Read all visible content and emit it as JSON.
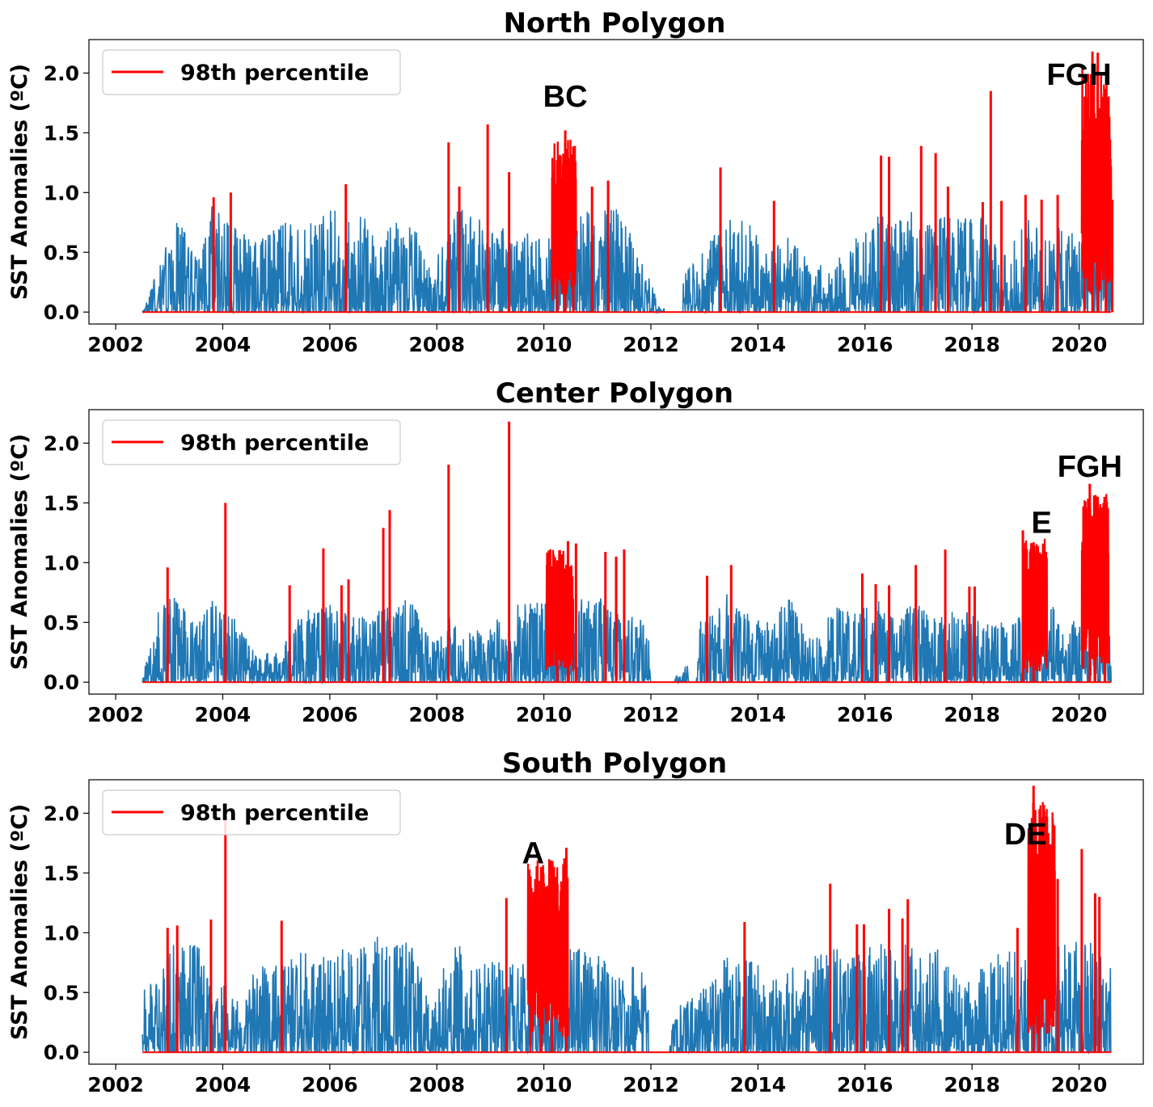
{
  "chart_data": [
    {
      "type": "line",
      "title": "North Polygon",
      "ylabel": "SST Anomalies (ºC)",
      "xlim": [
        2001.5,
        2021.2
      ],
      "ylim": [
        -0.1,
        2.28
      ],
      "xticks": [
        2002,
        2004,
        2006,
        2008,
        2010,
        2012,
        2014,
        2016,
        2018,
        2020
      ],
      "xtick_labels": [
        "2002",
        "2004",
        "2006",
        "2008",
        "2010",
        "2012",
        "2014",
        "2016",
        "2018",
        "2020"
      ],
      "yticks": [
        0.0,
        0.5,
        1.0,
        1.5,
        2.0
      ],
      "ytick_labels": [
        "0.0",
        "0.5",
        "1.0",
        "1.5",
        "2.0"
      ],
      "legend": {
        "position": "upper-left",
        "entries": [
          {
            "label": "98th percentile",
            "color": "#ff0000"
          }
        ]
      },
      "series": [
        {
          "name": "",
          "color": "#1f77b4",
          "description_values": "daily anomalies (envelope)",
          "x": [
            2002.5,
            2002.8,
            2003.1,
            2003.5,
            2003.8,
            2004.2,
            2004.6,
            2005.0,
            2005.5,
            2006.0,
            2006.5,
            2007.0,
            2007.5,
            2007.9,
            2008.3,
            2008.7,
            2009.1,
            2009.5,
            2010.0,
            2010.5,
            2011.0,
            2011.4,
            2011.8,
            2012.2,
            2012.6,
            2013.0,
            2013.4,
            2013.8,
            2014.2,
            2014.6,
            2015.0,
            2015.4,
            2015.8,
            2016.2,
            2016.6,
            2017.0,
            2017.4,
            2017.8,
            2018.2,
            2018.6,
            2019.0,
            2019.4,
            2019.8,
            2020.2,
            2020.6
          ],
          "y": [
            0.0,
            0.38,
            0.86,
            0.48,
            0.9,
            0.72,
            0.6,
            0.7,
            0.85,
            0.86,
            0.82,
            0.7,
            0.82,
            0.38,
            0.9,
            0.8,
            0.74,
            0.7,
            0.6,
            0.82,
            0.86,
            0.88,
            0.5,
            0.0,
            0.3,
            0.55,
            0.8,
            0.8,
            0.5,
            0.74,
            0.35,
            0.45,
            0.6,
            0.82,
            0.76,
            0.88,
            0.82,
            0.84,
            0.85,
            0.5,
            0.84,
            0.7,
            0.76,
            0.62,
            0.6
          ]
        },
        {
          "name": "98th percentile",
          "color": "#ff0000",
          "description_values": "exceedance spikes",
          "x": [
            2003.83,
            2004.15,
            2006.3,
            2008.22,
            2008.42,
            2008.95,
            2009.35,
            2010.25,
            2010.4,
            2010.55,
            2010.9,
            2011.2,
            2013.3,
            2014.3,
            2016.3,
            2016.45,
            2017.05,
            2017.32,
            2017.55,
            2018.2,
            2018.35,
            2018.55,
            2019.0,
            2019.3,
            2019.6,
            2020.1,
            2020.25,
            2020.35,
            2020.5,
            2020.62
          ],
          "y": [
            0.96,
            1.0,
            1.07,
            1.42,
            1.05,
            1.57,
            1.17,
            1.25,
            1.52,
            1.38,
            1.05,
            1.1,
            1.21,
            0.93,
            1.31,
            1.3,
            1.39,
            1.33,
            1.05,
            0.92,
            1.85,
            0.93,
            0.98,
            0.94,
            0.98,
            1.2,
            2.18,
            2.17,
            1.32,
            0.94
          ]
        }
      ],
      "annotations": [
        {
          "text": "BC",
          "x": 2010.4,
          "y": 1.72
        },
        {
          "text": "FGH",
          "x": 2020.0,
          "y": 1.9
        }
      ]
    },
    {
      "type": "line",
      "title": "Center Polygon",
      "ylabel": "SST Anomalies (ºC)",
      "xlim": [
        2001.5,
        2021.2
      ],
      "ylim": [
        -0.1,
        2.28
      ],
      "xticks": [
        2002,
        2004,
        2006,
        2008,
        2010,
        2012,
        2014,
        2016,
        2018,
        2020
      ],
      "xtick_labels": [
        "2002",
        "2004",
        "2006",
        "2008",
        "2010",
        "2012",
        "2014",
        "2016",
        "2018",
        "2020"
      ],
      "yticks": [
        0.0,
        0.5,
        1.0,
        1.5,
        2.0
      ],
      "ytick_labels": [
        "0.0",
        "0.5",
        "1.0",
        "1.5",
        "2.0"
      ],
      "legend": {
        "position": "upper-left",
        "entries": [
          {
            "label": "98th percentile",
            "color": "#ff0000"
          }
        ]
      },
      "series": [
        {
          "name": "",
          "color": "#1f77b4",
          "description_values": "daily anomalies (envelope)",
          "x": [
            2002.5,
            2002.8,
            2003.1,
            2003.5,
            2003.8,
            2004.2,
            2004.6,
            2005.0,
            2005.5,
            2006.0,
            2006.5,
            2007.0,
            2007.5,
            2007.9,
            2008.3,
            2008.7,
            2009.1,
            2009.5,
            2010.0,
            2010.5,
            2011.0,
            2011.4,
            2011.8,
            2012.2,
            2012.6,
            2013.0,
            2013.4,
            2013.8,
            2014.2,
            2014.6,
            2015.0,
            2015.4,
            2015.8,
            2016.2,
            2016.6,
            2017.0,
            2017.4,
            2017.8,
            2018.2,
            2018.6,
            2019.0,
            2019.4,
            2019.8,
            2020.2,
            2020.6
          ],
          "y": [
            0.05,
            0.6,
            0.75,
            0.5,
            0.75,
            0.55,
            0.25,
            0.25,
            0.6,
            0.66,
            0.55,
            0.65,
            0.7,
            0.35,
            0.6,
            0.45,
            0.55,
            0.65,
            0.68,
            0.72,
            0.72,
            0.6,
            0.55,
            0.05,
            0.08,
            0.6,
            0.75,
            0.6,
            0.5,
            0.72,
            0.35,
            0.62,
            0.65,
            0.7,
            0.62,
            0.65,
            0.6,
            0.6,
            0.55,
            0.5,
            0.72,
            0.7,
            0.5,
            0.62,
            0.7
          ]
        },
        {
          "name": "98th percentile",
          "color": "#ff0000",
          "description_values": "exceedance spikes",
          "x": [
            2002.97,
            2004.05,
            2005.25,
            2005.88,
            2006.22,
            2006.35,
            2007.0,
            2007.12,
            2008.22,
            2009.35,
            2010.25,
            2010.45,
            2010.6,
            2011.15,
            2011.35,
            2011.5,
            2013.05,
            2013.5,
            2015.95,
            2016.2,
            2016.45,
            2016.95,
            2017.5,
            2017.95,
            2018.05,
            2018.95,
            2019.15,
            2020.2,
            2020.3,
            2020.48
          ],
          "y": [
            0.96,
            1.5,
            0.81,
            1.12,
            0.81,
            0.86,
            1.29,
            1.44,
            1.82,
            2.18,
            1.02,
            1.18,
            1.16,
            1.09,
            1.05,
            1.11,
            0.89,
            0.98,
            0.91,
            0.82,
            0.81,
            0.98,
            1.11,
            0.8,
            0.8,
            1.27,
            1.17,
            1.66,
            1.55,
            1.1
          ]
        }
      ],
      "annotations": [
        {
          "text": "E",
          "x": 2019.3,
          "y": 1.25
        },
        {
          "text": "FGH",
          "x": 2020.2,
          "y": 1.72
        }
      ]
    },
    {
      "type": "line",
      "title": "South Polygon",
      "ylabel": "SST Anomalies (ºC)",
      "xlim": [
        2001.5,
        2021.2
      ],
      "ylim": [
        -0.1,
        2.28
      ],
      "xticks": [
        2002,
        2004,
        2006,
        2008,
        2010,
        2012,
        2014,
        2016,
        2018,
        2020
      ],
      "xtick_labels": [
        "2002",
        "2004",
        "2006",
        "2008",
        "2010",
        "2012",
        "2014",
        "2016",
        "2018",
        "2020"
      ],
      "yticks": [
        0.0,
        0.5,
        1.0,
        1.5,
        2.0
      ],
      "ytick_labels": [
        "0.0",
        "0.5",
        "1.0",
        "1.5",
        "2.0"
      ],
      "legend": {
        "position": "upper-left",
        "entries": [
          {
            "label": "98th percentile",
            "color": "#ff0000"
          }
        ]
      },
      "series": [
        {
          "name": "",
          "color": "#1f77b4",
          "description_values": "daily anomalies (envelope)",
          "x": [
            2002.5,
            2002.8,
            2003.1,
            2003.5,
            2003.8,
            2004.2,
            2004.6,
            2005.0,
            2005.5,
            2006.0,
            2006.5,
            2007.0,
            2007.5,
            2007.9,
            2008.3,
            2008.7,
            2009.1,
            2009.5,
            2010.0,
            2010.5,
            2011.0,
            2011.4,
            2011.8,
            2012.2,
            2012.6,
            2013.0,
            2013.4,
            2013.8,
            2014.2,
            2014.6,
            2015.0,
            2015.4,
            2015.8,
            2016.2,
            2016.6,
            2017.0,
            2017.4,
            2017.8,
            2018.2,
            2018.6,
            2019.0,
            2019.4,
            2019.8,
            2020.2,
            2020.6
          ],
          "y": [
            0.55,
            0.6,
            0.95,
            0.9,
            0.85,
            0.45,
            0.7,
            0.75,
            0.85,
            0.82,
            0.92,
            0.98,
            0.95,
            0.35,
            0.98,
            0.72,
            0.8,
            0.78,
            0.82,
            0.88,
            0.86,
            0.72,
            0.75,
            0.0,
            0.45,
            0.55,
            0.8,
            0.88,
            0.65,
            0.72,
            0.8,
            0.9,
            0.82,
            0.92,
            0.88,
            0.95,
            0.85,
            0.55,
            0.72,
            0.88,
            0.82,
            0.95,
            0.9,
            0.98,
            0.72
          ]
        },
        {
          "name": "98th percentile",
          "color": "#ff0000",
          "description_values": "exceedance spikes",
          "x": [
            2002.97,
            2003.15,
            2003.78,
            2004.05,
            2005.1,
            2009.3,
            2009.75,
            2009.95,
            2010.15,
            2010.42,
            2013.75,
            2015.35,
            2015.85,
            2015.98,
            2016.45,
            2016.7,
            2016.8,
            2018.85,
            2019.15,
            2019.25,
            2019.6,
            2020.05,
            2020.3,
            2020.38
          ],
          "y": [
            1.04,
            1.06,
            1.11,
            2.0,
            1.1,
            1.29,
            1.47,
            1.55,
            1.45,
            1.71,
            1.09,
            1.41,
            1.07,
            1.07,
            1.2,
            1.12,
            1.28,
            1.04,
            2.23,
            1.41,
            1.45,
            1.7,
            1.33,
            1.3
          ]
        }
      ],
      "annotations": [
        {
          "text": "A",
          "x": 2009.8,
          "y": 1.58
        },
        {
          "text": "DE",
          "x": 2019.0,
          "y": 1.74
        }
      ]
    }
  ]
}
